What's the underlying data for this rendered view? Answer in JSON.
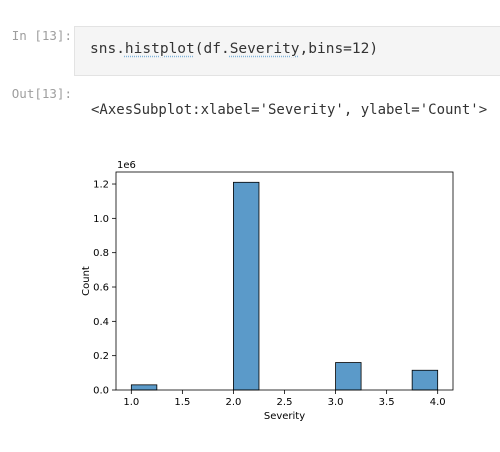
{
  "cells": {
    "input_prompt": "In [13]:",
    "code": {
      "p1": "sns.",
      "fn": "histplot",
      "p2": "(df.",
      "attr": "Severity",
      "p3": ",bins=12)"
    },
    "output_prompt": "Out[13]:",
    "output_text": "<AxesSubplot:xlabel='Severity', ylabel='Count'>"
  },
  "chart_data": {
    "type": "bar",
    "xlabel": "Severity",
    "ylabel": "Count",
    "offset_label": "1e6",
    "xlim": [
      0.85,
      4.15
    ],
    "ylim": [
      0,
      1.27
    ],
    "x_ticks": [
      1.0,
      1.5,
      2.0,
      2.5,
      3.0,
      3.5,
      4.0
    ],
    "x_tick_labels": [
      "1.0",
      "1.5",
      "2.0",
      "2.5",
      "3.0",
      "3.5",
      "4.0"
    ],
    "y_ticks": [
      0,
      0.2,
      0.4,
      0.6,
      0.8,
      1.0,
      1.2
    ],
    "y_tick_labels": [
      "0.0",
      "0.2",
      "0.4",
      "0.6",
      "0.8",
      "1.0",
      "1.2"
    ],
    "bins": [
      {
        "x0": 1.0,
        "x1": 1.25,
        "value": 0.03
      },
      {
        "x0": 2.0,
        "x1": 2.25,
        "value": 1.21
      },
      {
        "x0": 3.0,
        "x1": 3.25,
        "value": 0.16
      },
      {
        "x0": 3.75,
        "x1": 4.0,
        "value": 0.115
      }
    ],
    "bar_color": "#5b9ac9"
  }
}
